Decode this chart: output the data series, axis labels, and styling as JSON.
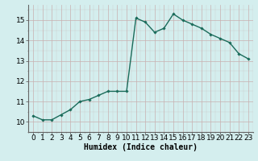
{
  "x": [
    0,
    1,
    2,
    3,
    4,
    5,
    6,
    7,
    8,
    9,
    10,
    11,
    12,
    13,
    14,
    15,
    16,
    17,
    18,
    19,
    20,
    21,
    22,
    23
  ],
  "y": [
    10.3,
    10.1,
    10.1,
    10.35,
    10.6,
    11.0,
    11.1,
    11.3,
    11.5,
    11.5,
    11.5,
    15.1,
    14.9,
    14.4,
    14.6,
    15.3,
    15.0,
    14.8,
    14.6,
    14.3,
    14.1,
    13.9,
    13.35,
    13.1
  ],
  "line_color": "#1a6b5a",
  "marker": "D",
  "marker_size": 1.8,
  "bg_color": "#d4eeee",
  "grid_color_major": "#c8b0b0",
  "xlabel": "Humidex (Indice chaleur)",
  "xlabel_fontsize": 7,
  "ylabel_ticks": [
    10,
    11,
    12,
    13,
    14,
    15
  ],
  "xlim": [
    -0.5,
    23.5
  ],
  "ylim": [
    9.5,
    15.75
  ],
  "tick_fontsize": 6.5,
  "linewidth": 1.0
}
